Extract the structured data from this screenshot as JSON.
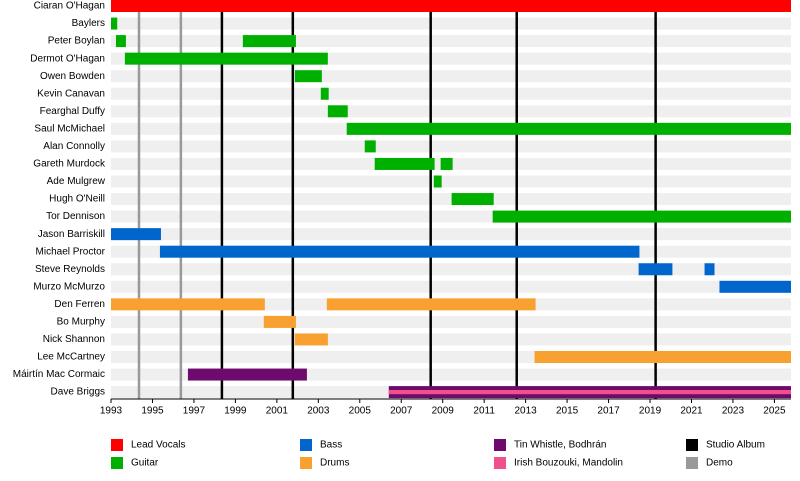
{
  "chart_data": {
    "type": "timeline",
    "categories": [
      "Ciaran O'Hagan",
      "Baylers",
      "Peter Boylan",
      "Dermot O'Hagan",
      "Owen Bowden",
      "Kevin Canavan",
      "Fearghal Duffy",
      "Saul McMichael",
      "Alan Connolly",
      "Gareth Murdock",
      "Ade Mulgrew",
      "Hugh O'Neill",
      "Tor Dennison",
      "Jason Barriskill",
      "Michael Proctor",
      "Steve Reynolds",
      "Murzo McMurzo",
      "Den Ferren",
      "Bo Murphy",
      "Nick Shannon",
      "Lee McCartney",
      "Máirtín Mac Cormaic",
      "Dave Briggs"
    ],
    "xlim": [
      1993,
      2025.8
    ],
    "xticks": [
      1993,
      1995,
      1997,
      1999,
      2001,
      2003,
      2005,
      2007,
      2009,
      2011,
      2013,
      2015,
      2017,
      2019,
      2021,
      2023,
      2025
    ],
    "series": [
      {
        "name": "Lead Vocals",
        "color": "#ff0000",
        "bars": [
          {
            "category": "Ciaran O'Hagan",
            "start": 1993,
            "end": 2025.8
          }
        ]
      },
      {
        "name": "Guitar",
        "color": "#00b000",
        "bars": [
          {
            "category": "Baylers",
            "start": 1993,
            "end": 1993.3
          },
          {
            "category": "Peter Boylan",
            "start": 1993.24,
            "end": 1993.72
          },
          {
            "category": "Peter Boylan",
            "start": 1999.36,
            "end": 2001.92
          },
          {
            "category": "Dermot O'Hagan",
            "start": 1993.67,
            "end": 2003.46
          },
          {
            "category": "Owen Bowden",
            "start": 2001.87,
            "end": 2003.17
          },
          {
            "category": "Kevin Canavan",
            "start": 2003.12,
            "end": 2003.5
          },
          {
            "category": "Fearghal Duffy",
            "start": 2003.46,
            "end": 2004.42
          },
          {
            "category": "Saul McMichael",
            "start": 2004.37,
            "end": 2025.8
          },
          {
            "category": "Alan Connolly",
            "start": 2005.24,
            "end": 2005.77
          },
          {
            "category": "Gareth Murdock",
            "start": 2005.72,
            "end": 2008.61
          },
          {
            "category": "Gareth Murdock",
            "start": 2008.9,
            "end": 2009.48
          },
          {
            "category": "Ade Mulgrew",
            "start": 2008.57,
            "end": 2008.95
          },
          {
            "category": "Hugh O'Neill",
            "start": 2009.43,
            "end": 2011.46
          },
          {
            "category": "Tor Dennison",
            "start": 2011.41,
            "end": 2025.8
          }
        ]
      },
      {
        "name": "Bass",
        "color": "#0066cc",
        "bars": [
          {
            "category": "Jason Barriskill",
            "start": 1993,
            "end": 1995.41
          },
          {
            "category": "Michael Proctor",
            "start": 1995.36,
            "end": 2018.49
          },
          {
            "category": "Steve Reynolds",
            "start": 2018.45,
            "end": 2020.08
          },
          {
            "category": "Steve Reynolds",
            "start": 2021.63,
            "end": 2022.11
          },
          {
            "category": "Murzo McMurzo",
            "start": 2022.35,
            "end": 2025.8
          }
        ]
      },
      {
        "name": "Drums",
        "color": "#f8a030",
        "bars": [
          {
            "category": "Den Ferren",
            "start": 1993,
            "end": 2000.42
          },
          {
            "category": "Den Ferren",
            "start": 2003.41,
            "end": 2013.48
          },
          {
            "category": "Bo Murphy",
            "start": 2000.37,
            "end": 2001.92
          },
          {
            "category": "Nick Shannon",
            "start": 2001.87,
            "end": 2003.46
          },
          {
            "category": "Lee McCartney",
            "start": 2013.43,
            "end": 2025.8
          }
        ]
      },
      {
        "name": "Tin Whistle, Bodhrán",
        "color": "#6e0a6e",
        "bars": [
          {
            "category": "Máirtín Mac Cormaic",
            "start": 1996.71,
            "end": 2002.45
          },
          {
            "category": "Dave Briggs",
            "start": 2006.4,
            "end": 2025.8
          }
        ]
      },
      {
        "name": "Irish Bouzouki, Mandolin",
        "color": "#f0508c",
        "bars": [
          {
            "category": "Dave Briggs",
            "start": 2006.4,
            "end": 2025.8
          }
        ]
      },
      {
        "name": "Studio Album",
        "color": "#000000",
        "lines": [
          1998.35,
          2001.77,
          2008.42,
          2012.57,
          2019.27
        ]
      },
      {
        "name": "Demo",
        "color": "#999999",
        "lines": [
          1994.35,
          1996.37
        ]
      }
    ]
  }
}
